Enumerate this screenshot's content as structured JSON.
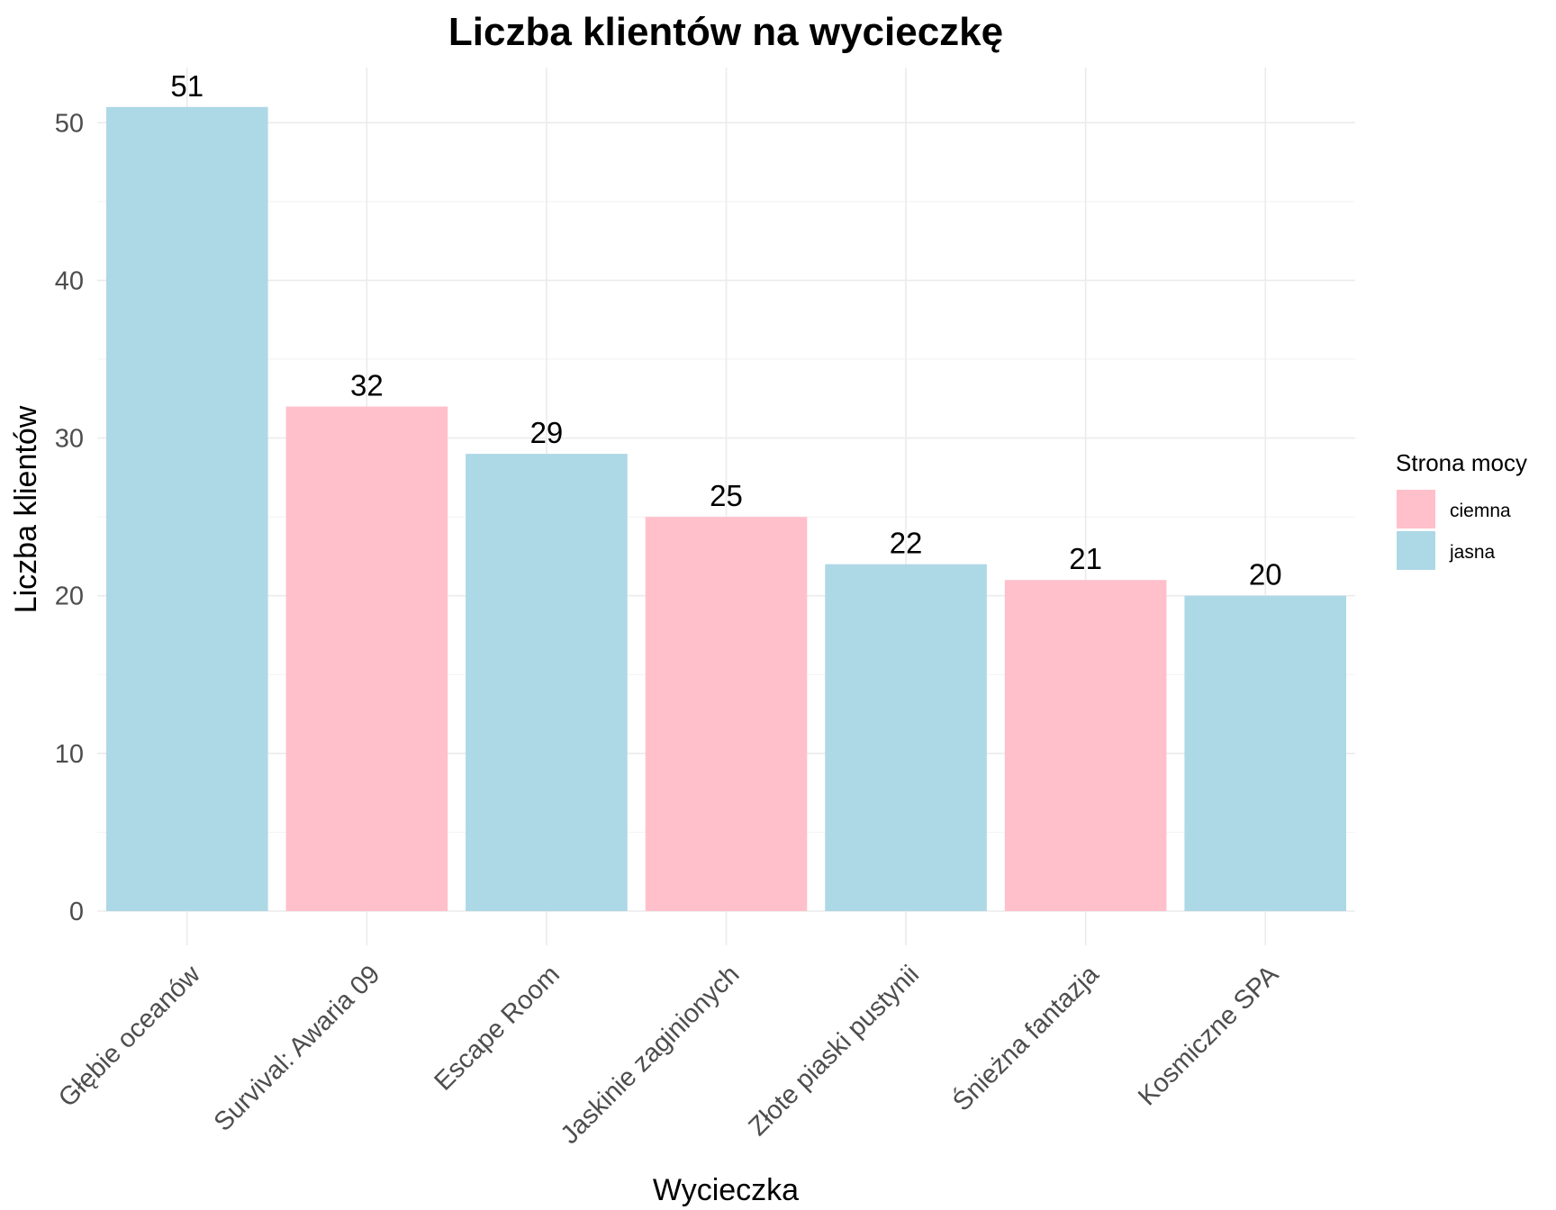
{
  "chart_data": {
    "type": "bar",
    "title": "Liczba klientów na wycieczkę",
    "xlabel": "Wycieczka",
    "ylabel": "Liczba klientów",
    "categories": [
      "Głębie oceanów",
      "Survival: Awaria 09",
      "Escape Room",
      "Jaskinie zaginionych",
      "Złote piaski pustynii",
      "Śnieżna fantazja",
      "Kosmiczne SPA"
    ],
    "values": [
      51,
      32,
      29,
      25,
      22,
      21,
      20
    ],
    "groups": [
      "jasna",
      "ciemna",
      "jasna",
      "ciemna",
      "jasna",
      "ciemna",
      "jasna"
    ],
    "yticks": [
      0,
      10,
      20,
      30,
      40,
      50
    ],
    "ylim": [
      0,
      53.5
    ],
    "grid": true,
    "legend": {
      "title": "Strona mocy",
      "position": "right",
      "entries": [
        {
          "label": "ciemna",
          "color": "#ffc0cb"
        },
        {
          "label": "jasna",
          "color": "#add8e6"
        }
      ]
    }
  }
}
